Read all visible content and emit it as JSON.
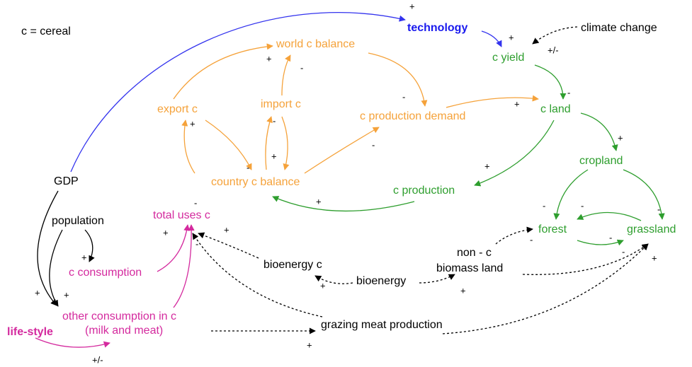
{
  "nodes": [
    "c = cereal",
    "technology",
    "climate change",
    "c yield",
    "world c balance",
    "import c",
    "export c",
    "c production demand",
    "c land",
    "cropland",
    "GDP",
    "country c balance",
    "c production",
    "population",
    "total uses c",
    "forest",
    "grassland",
    "non - c",
    "biomass land",
    "bioenergy c",
    "c consumption",
    "bioenergy",
    "other consumption in c",
    "(milk and meat)",
    "life-style",
    "grazing meat production"
  ],
  "signs": [
    "+",
    "+",
    "+/-",
    "+",
    "-",
    "-",
    "+",
    "-",
    "+",
    "+",
    "-",
    "-",
    "+",
    "-",
    "+",
    "+",
    "-",
    "-",
    "-",
    "-",
    "-",
    "-",
    "+",
    "-",
    "+",
    "+",
    "+",
    "-",
    "+",
    "+",
    "+",
    "+",
    "+",
    "+/-"
  ]
}
